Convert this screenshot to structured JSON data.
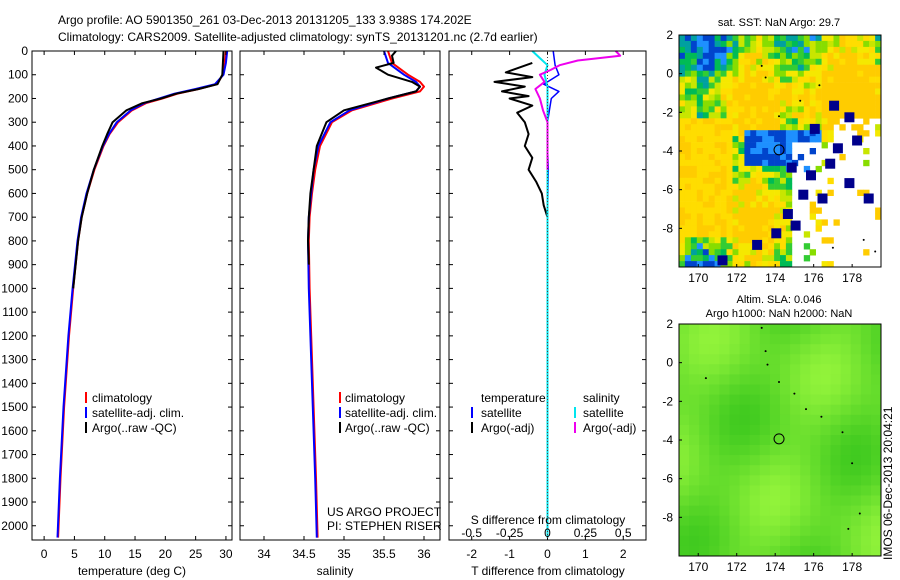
{
  "title_line1": "Argo profile: AO 5901350_261 03-Dec-2013 20131205_133 3.938S 174.202E",
  "title_line2": "Climatology: CARS2009. Satellite-adjusted climatology: synTS_20131201.nc (2.7d earlier)",
  "timestamp": "IMOS 06-Dec-2013 20:04:21",
  "colors": {
    "climatology": "#ff0000",
    "satellite": "#0000ff",
    "argo": "#000000",
    "salinity_satellite": "#00e5ee",
    "salinity_argo": "#ee00ee",
    "sst_low": "#00008b",
    "sla_field": "#55dd33"
  },
  "chart_data": [
    {
      "id": "temperature",
      "type": "line",
      "xlabel": "temperature (deg C)",
      "ylabel": "",
      "xlim": [
        -2,
        31
      ],
      "ylim": [
        2060,
        0
      ],
      "xticks": [
        "0",
        "5",
        "10",
        "15",
        "20",
        "25",
        "30"
      ],
      "yticks": [
        "0",
        "100",
        "200",
        "300",
        "400",
        "500",
        "600",
        "700",
        "800",
        "900",
        "1000",
        "1100",
        "1200",
        "1300",
        "1400",
        "1500",
        "1600",
        "1700",
        "1800",
        "1900",
        "2000"
      ],
      "legend": [
        "climatology",
        "satellite-adj. clim.",
        "Argo(..raw -QC)"
      ],
      "series": [
        {
          "name": "climatology",
          "depth": [
            0,
            50,
            100,
            140,
            160,
            180,
            200,
            220,
            250,
            300,
            350,
            400,
            500,
            600,
            700,
            800,
            1000,
            1200,
            1500,
            1800,
            2050
          ],
          "values": [
            30,
            29.8,
            29.5,
            28.5,
            25.5,
            22,
            19.5,
            16.8,
            14.5,
            12.2,
            10.8,
            9.8,
            8.3,
            7.1,
            6.2,
            5.6,
            4.8,
            4.1,
            3.3,
            2.7,
            2.3
          ]
        },
        {
          "name": "satellite-adj. clim.",
          "depth": [
            0,
            50,
            100,
            140,
            160,
            180,
            200,
            220,
            250,
            300,
            350,
            400,
            500,
            600,
            700,
            800,
            1000,
            1200,
            1500,
            1800,
            2050
          ],
          "values": [
            30.2,
            30,
            29.6,
            28.2,
            25,
            21.5,
            19,
            16.5,
            14.3,
            12,
            10.7,
            9.7,
            8.2,
            7,
            6.1,
            5.5,
            4.7,
            4,
            3.2,
            2.6,
            2.2
          ]
        },
        {
          "name": "Argo(..raw -QC)",
          "depth": [
            0,
            50,
            100,
            140,
            160,
            180,
            200,
            220,
            250,
            300,
            350,
            400,
            500,
            600,
            700,
            800,
            1000
          ],
          "values": [
            29.6,
            29.5,
            29.4,
            28.6,
            25.5,
            21.8,
            19.3,
            16.2,
            13.6,
            11.3,
            10.4,
            9.6,
            8.2,
            7.1,
            6.2,
            5.6,
            4.8
          ]
        }
      ]
    },
    {
      "id": "salinity",
      "type": "line",
      "xlabel": "salinity",
      "ylabel": "",
      "xlim": [
        33.7,
        36.2
      ],
      "ylim": [
        2060,
        0
      ],
      "xticks": [
        "34",
        "34.5",
        "35",
        "35.5",
        "36"
      ],
      "legend": [
        "climatology",
        "satellite-adj. clim.",
        "Argo(..raw -QC)"
      ],
      "annotation": [
        "US ARGO PROJECT",
        "PI: STEPHEN RISER"
      ],
      "series": [
        {
          "name": "climatology",
          "depth": [
            0,
            50,
            100,
            130,
            150,
            170,
            200,
            250,
            300,
            400,
            500,
            600,
            700,
            800,
            1000,
            1200,
            1500,
            1800,
            2050
          ],
          "values": [
            35.55,
            35.6,
            35.8,
            35.95,
            36,
            35.95,
            35.6,
            35.1,
            34.85,
            34.7,
            34.64,
            34.6,
            34.57,
            34.56,
            34.57,
            34.59,
            34.62,
            34.65,
            34.67
          ]
        },
        {
          "name": "satellite-adj. clim.",
          "depth": [
            0,
            50,
            100,
            130,
            150,
            170,
            200,
            250,
            300,
            400,
            500,
            600,
            700,
            800,
            1000,
            1200,
            1500,
            1800,
            2050
          ],
          "values": [
            35.5,
            35.55,
            35.75,
            35.9,
            35.95,
            35.9,
            35.55,
            35.07,
            34.83,
            34.68,
            34.62,
            34.59,
            34.56,
            34.55,
            34.56,
            34.58,
            34.61,
            34.64,
            34.66
          ]
        },
        {
          "name": "Argo(..raw -QC)",
          "depth": [
            0,
            20,
            50,
            70,
            100,
            130,
            150,
            170,
            200,
            250,
            300,
            400,
            500,
            600,
            700,
            800,
            900
          ],
          "values": [
            35.65,
            35.6,
            35.62,
            35.4,
            35.55,
            35.85,
            35.95,
            35.9,
            35.55,
            35,
            34.78,
            34.66,
            34.62,
            34.58,
            34.56,
            34.55,
            34.56
          ]
        }
      ]
    },
    {
      "id": "differences",
      "type": "line",
      "xlabel": "T difference from climatology",
      "xlabel_top": "S difference from climatology",
      "ylabel": "",
      "xlim": [
        -2.6,
        2.6
      ],
      "ylim": [
        2060,
        0
      ],
      "xticks": [
        "-2",
        "-1",
        "0",
        "1",
        "2"
      ],
      "xticks_s": [
        "-0.5",
        "-0.25",
        "0",
        "0.25",
        "0.5"
      ],
      "legend_temperature": {
        "title": "temperature",
        "items": [
          "satellite",
          "Argo(-adj)"
        ]
      },
      "legend_salinity": {
        "title": "salinity",
        "items": [
          "satellite",
          "Argo(-adj)"
        ]
      },
      "series": [
        {
          "name": "temperature satellite",
          "depth": [
            0,
            60,
            100,
            140,
            170,
            200,
            250,
            300,
            400,
            500,
            700,
            1000,
            1500,
            2050
          ],
          "values": [
            0.15,
            0.2,
            0.3,
            -0.1,
            0.3,
            0.1,
            0.05,
            0,
            0,
            0.02,
            0,
            0,
            0,
            0
          ]
        },
        {
          "name": "temperature Argo(-adj)",
          "depth": [
            50,
            90,
            110,
            130,
            150,
            170,
            190,
            200,
            230,
            260,
            300,
            350,
            400,
            450,
            500,
            550,
            600,
            650,
            700
          ],
          "values": [
            -0.4,
            -1.1,
            -0.4,
            -1.4,
            -0.6,
            -1.2,
            -0.5,
            -1.0,
            -0.4,
            -0.8,
            -0.6,
            -0.5,
            -0.6,
            -0.4,
            -0.5,
            -0.3,
            -0.15,
            -0.1,
            0
          ]
        },
        {
          "name": "salinity satellite",
          "depth": [
            0,
            30,
            60,
            100,
            150,
            200,
            300,
            500,
            1000,
            2050
          ],
          "values": [
            -0.1,
            -0.05,
            0,
            -0.02,
            0,
            0,
            0,
            0,
            0,
            0
          ]
        },
        {
          "name": "salinity Argo(-adj)",
          "depth": [
            0,
            20,
            40,
            60,
            80,
            100,
            130,
            160,
            200,
            250,
            300,
            350,
            400,
            500
          ],
          "values": [
            0.45,
            0.48,
            0.2,
            0.08,
            0.02,
            -0.05,
            -0.02,
            -0.08,
            -0.05,
            -0.03,
            0,
            0,
            0,
            0
          ]
        }
      ]
    },
    {
      "id": "sst-map",
      "type": "heatmap",
      "title": "sat. SST: NaN Argo: 29.7",
      "xlim": [
        169,
        179.5
      ],
      "ylim": [
        -10,
        2
      ],
      "xticks": [
        "170",
        "172",
        "174",
        "176",
        "178"
      ],
      "yticks": [
        "2",
        "0",
        "-2",
        "-4",
        "-6",
        "-8"
      ],
      "argo_position": [
        174.2,
        -3.94
      ]
    },
    {
      "id": "sla-map",
      "type": "heatmap",
      "title_line1": "Altim. SLA: 0.046",
      "title_line2": "Argo h1000: NaN h2000: NaN",
      "xlim": [
        169,
        179.5
      ],
      "ylim": [
        -10,
        2
      ],
      "xticks": [
        "170",
        "172",
        "174",
        "176",
        "178"
      ],
      "yticks": [
        "2",
        "0",
        "-2",
        "-4",
        "-6",
        "-8"
      ],
      "argo_position": [
        174.2,
        -3.94
      ]
    }
  ]
}
